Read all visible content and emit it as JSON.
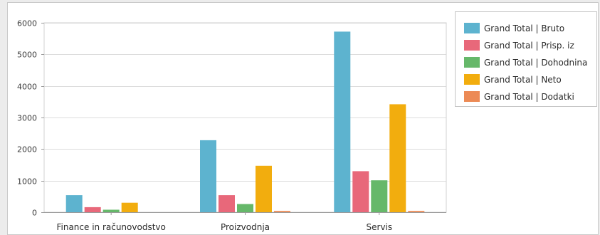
{
  "chart_data": {
    "type": "bar",
    "title": "",
    "xlabel": "",
    "ylabel": "",
    "categories": [
      "Finance in računovodstvo",
      "Proizvodnja",
      "Servis"
    ],
    "ylim": [
      0,
      6000
    ],
    "yticks": [
      0,
      1000,
      2000,
      3000,
      4000,
      5000,
      6000
    ],
    "grid": true,
    "legend_position": "top-right",
    "series": [
      {
        "name": "Grand Total | Bruto",
        "color": "#5db3cf",
        "values": [
          540,
          2280,
          5720
        ]
      },
      {
        "name": "Grand Total | Prisp. iz",
        "color": "#e8687a",
        "values": [
          160,
          540,
          1300
        ]
      },
      {
        "name": "Grand Total | Dohodnina",
        "color": "#66b86a",
        "values": [
          80,
          260,
          1010
        ]
      },
      {
        "name": "Grand Total | Neto",
        "color": "#f2ad0e",
        "values": [
          300,
          1470,
          3420
        ]
      },
      {
        "name": "Grand Total | Dodatki",
        "color": "#ec8a55",
        "values": [
          0,
          40,
          40
        ]
      }
    ]
  }
}
